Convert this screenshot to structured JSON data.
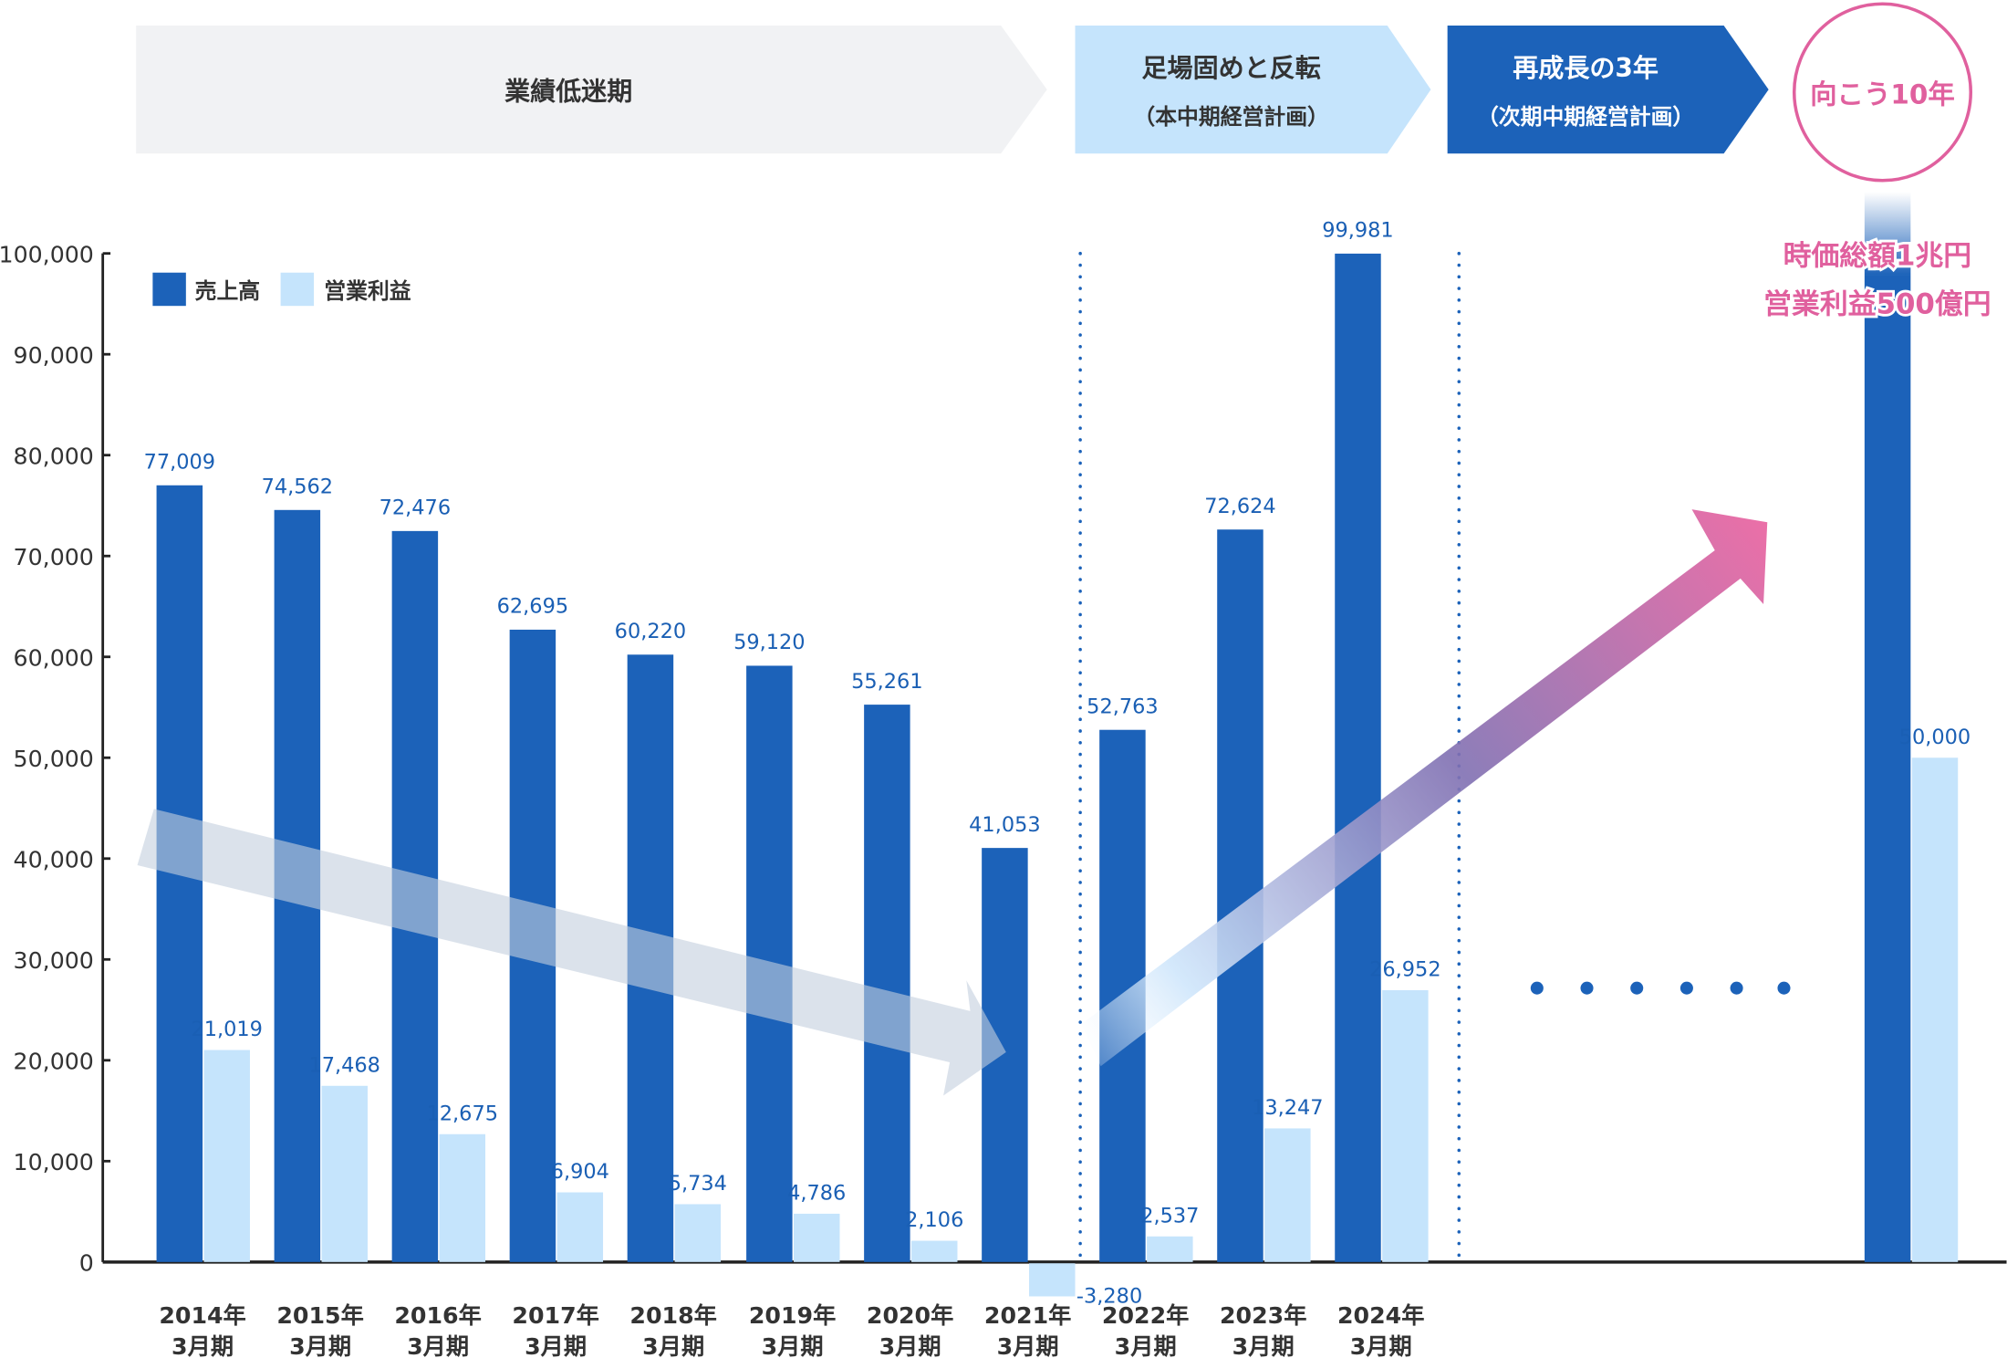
{
  "phases": [
    {
      "title": "業績低迷期",
      "subtitle": ""
    },
    {
      "title": "足場固めと反転",
      "subtitle": "（本中期経営計画）"
    },
    {
      "title": "再成長の3年",
      "subtitle": "（次期中期経営計画）"
    }
  ],
  "future_circle": "向こう10年",
  "future_targets": [
    "時価総額1兆円",
    "営業利益500億円"
  ],
  "colors": {
    "sales": "#1c62b9",
    "profit": "#c5e4fc",
    "accent": "#e0609e",
    "label": "#1a5fb4",
    "gray_phase": "#f1f2f4"
  },
  "chart_data": {
    "type": "bar",
    "ylim": [
      0,
      100000
    ],
    "yticks": [
      "0",
      "10,000",
      "20,000",
      "30,000",
      "40,000",
      "50,000",
      "60,000",
      "70,000",
      "80,000",
      "90,000",
      "100,000"
    ],
    "categories": [
      [
        "2014年",
        "3月期"
      ],
      [
        "2015年",
        "3月期"
      ],
      [
        "2016年",
        "3月期"
      ],
      [
        "2017年",
        "3月期"
      ],
      [
        "2018年",
        "3月期"
      ],
      [
        "2019年",
        "3月期"
      ],
      [
        "2020年",
        "3月期"
      ],
      [
        "2021年",
        "3月期"
      ],
      [
        "2022年",
        "3月期"
      ],
      [
        "2023年",
        "3月期"
      ],
      [
        "2024年",
        "3月期"
      ],
      [
        "",
        ""
      ]
    ],
    "series": [
      {
        "name": "売上高",
        "values": [
          77009,
          74562,
          72476,
          62695,
          60220,
          59120,
          55261,
          41053,
          52763,
          72624,
          99981,
          null
        ],
        "labels": [
          "77,009",
          "74,562",
          "72,476",
          "62,695",
          "60,220",
          "59,120",
          "55,261",
          "41,053",
          "52,763",
          "72,624",
          "99,981",
          ""
        ]
      },
      {
        "name": "営業利益",
        "values": [
          21019,
          17468,
          12675,
          6904,
          5734,
          4786,
          2106,
          -3280,
          2537,
          13247,
          26952,
          50000
        ],
        "labels": [
          "21,019",
          "17,468",
          "12,675",
          "6,904",
          "5,734",
          "4,786",
          "2,106",
          "-3,280",
          "2,537",
          "13,247",
          "26,952",
          "50,000"
        ]
      }
    ],
    "grid": false,
    "legend": "top-left"
  }
}
